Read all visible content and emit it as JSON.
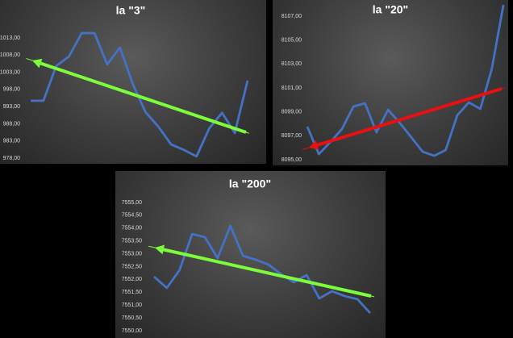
{
  "chart_data": [
    {
      "type": "line",
      "title": "la \"3\"",
      "series": [
        {
          "name": null,
          "color": "#4472c4",
          "values": [
            994.7,
            994.7,
            1004.8,
            1007.6,
            1014.4,
            1014.4,
            1005.3,
            1010.2,
            999.6,
            991.4,
            987.2,
            982.0,
            980.4,
            978.5,
            986.7,
            991.2,
            985.3,
            1000.6
          ]
        }
      ],
      "ylim": [
        978,
        1013
      ],
      "yticks": [
        {
          "value": 1013,
          "label": "1013,00"
        },
        {
          "value": 1008,
          "label": "1008,00"
        },
        {
          "value": 1003,
          "label": "1003,00"
        },
        {
          "value": 998,
          "label": "998,00"
        },
        {
          "value": 993,
          "label": "993,00"
        },
        {
          "value": 988,
          "label": "988,00"
        },
        {
          "value": 983,
          "label": "983,00"
        },
        {
          "value": 978,
          "label": "978,00"
        }
      ]
    },
    {
      "type": "line",
      "title": "la \"20\"",
      "series": [
        {
          "name": null,
          "color": "#4472c4",
          "values": [
            8097.76,
            8095.47,
            8096.48,
            8097.56,
            8099.45,
            8099.72,
            8097.29,
            8099.18,
            8098.1,
            8096.89,
            8095.67,
            8095.33,
            8095.81,
            8098.71,
            8099.79,
            8099.25,
            8102.62,
            8107.94
          ]
        }
      ],
      "ylim": [
        8095,
        8108
      ],
      "yticks": [
        {
          "value": 8107,
          "label": "8107,00"
        },
        {
          "value": 8105,
          "label": "8105,00"
        },
        {
          "value": 8103,
          "label": "8103,00"
        },
        {
          "value": 8101,
          "label": "8101,00"
        },
        {
          "value": 8099,
          "label": "8099,00"
        },
        {
          "value": 8097,
          "label": "8097,00"
        },
        {
          "value": 8095,
          "label": "8095,00"
        }
      ]
    },
    {
      "type": "line",
      "title": "la \"200\"",
      "series": [
        {
          "name": null,
          "color": "#4472c4",
          "values": [
            7552.11,
            7551.67,
            7552.36,
            7553.77,
            7553.65,
            7552.83,
            7554.09,
            7552.92,
            7552.77,
            7552.58,
            7552.2,
            7551.89,
            7552.17,
            7551.26,
            7551.54,
            7551.35,
            7551.23,
            7550.69
          ]
        }
      ],
      "ylim": [
        7550,
        7555
      ],
      "yticks": [
        {
          "value": 7555,
          "label": "7555,00"
        },
        {
          "value": 7554.5,
          "label": "7554,50"
        },
        {
          "value": 7554,
          "label": "7554,00"
        },
        {
          "value": 7553.5,
          "label": "7553,50"
        },
        {
          "value": 7553,
          "label": "7553,00"
        },
        {
          "value": 7552.5,
          "label": "7552,50"
        },
        {
          "value": 7552,
          "label": "7552,00"
        },
        {
          "value": 7551.5,
          "label": "7551,50"
        },
        {
          "value": 7551,
          "label": "7551,00"
        },
        {
          "value": 7550.5,
          "label": "7550,50"
        },
        {
          "value": 7550,
          "label": "7550,00"
        }
      ]
    }
  ]
}
